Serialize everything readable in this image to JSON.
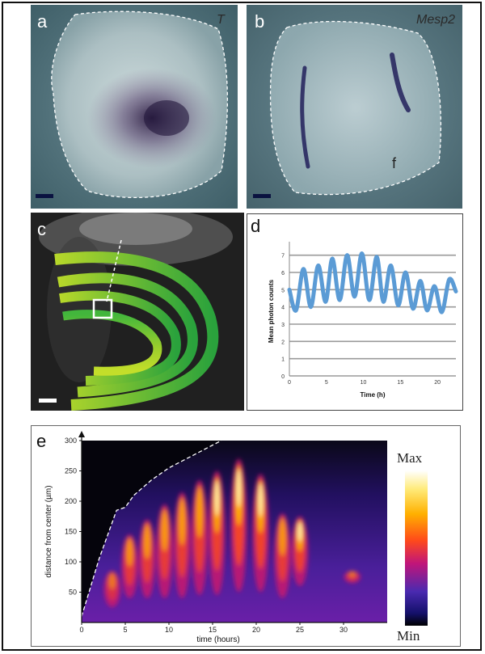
{
  "panels": {
    "a": {
      "label": "a",
      "gene": "T"
    },
    "b": {
      "label": "b",
      "gene": "Mesp2",
      "mark": "f"
    },
    "c": {
      "label": "c"
    },
    "d": {
      "label": "d"
    },
    "e": {
      "label": "e",
      "legend_max": "Max",
      "legend_min": "Min"
    }
  },
  "chart_data": [
    {
      "panel": "d",
      "type": "line",
      "xlabel": "Time (h)",
      "ylabel": "Mean photon counts",
      "xlim": [
        0,
        22.5
      ],
      "ylim": [
        0,
        7.5
      ],
      "xticks": [
        0,
        5,
        10,
        15,
        20
      ],
      "yticks": [
        0,
        1,
        2,
        3,
        4,
        5,
        6,
        7
      ],
      "grid": true,
      "series_color": "#5b9bd5",
      "series": [
        {
          "x": [
            0,
            0.9,
            1.9,
            2.9,
            3.9,
            4.9,
            5.8,
            6.8,
            7.8,
            8.8,
            9.8,
            10.8,
            11.8,
            12.7,
            13.7,
            14.7,
            15.7,
            16.7,
            17.7,
            18.6,
            19.6,
            20.6,
            21.6,
            22.5
          ],
          "y": [
            5.0,
            3.8,
            6.2,
            4.0,
            6.4,
            4.3,
            6.8,
            4.4,
            7.0,
            4.6,
            7.1,
            4.4,
            6.9,
            4.3,
            6.4,
            4.1,
            6.0,
            3.9,
            5.5,
            3.8,
            5.2,
            3.7,
            5.6,
            4.9
          ]
        }
      ]
    },
    {
      "panel": "e",
      "type": "heatmap",
      "xlabel": "time (hours)",
      "ylabel": "distance from center (µm)",
      "xlim": [
        0,
        35
      ],
      "ylim": [
        0,
        300
      ],
      "xticks": [
        0,
        5,
        10,
        15,
        20,
        25,
        30
      ],
      "yticks": [
        50,
        100,
        150,
        200,
        250,
        300
      ],
      "colorbar": [
        "Max",
        "Min"
      ],
      "stripes": [
        {
          "t": 3.5,
          "d0": 25,
          "d1": 85,
          "i": 0.55
        },
        {
          "t": 5.5,
          "d0": 40,
          "d1": 145,
          "i": 0.75
        },
        {
          "t": 7.5,
          "d0": 40,
          "d1": 170,
          "i": 0.78
        },
        {
          "t": 9.5,
          "d0": 40,
          "d1": 195,
          "i": 0.8
        },
        {
          "t": 11.5,
          "d0": 40,
          "d1": 215,
          "i": 0.82
        },
        {
          "t": 13.5,
          "d0": 45,
          "d1": 235,
          "i": 0.85
        },
        {
          "t": 15.5,
          "d0": 45,
          "d1": 250,
          "i": 0.9
        },
        {
          "t": 18.0,
          "d0": 50,
          "d1": 270,
          "i": 1.0
        },
        {
          "t": 20.5,
          "d0": 50,
          "d1": 245,
          "i": 0.95
        },
        {
          "t": 23.0,
          "d0": 40,
          "d1": 180,
          "i": 0.78
        },
        {
          "t": 25.0,
          "d0": 60,
          "d1": 175,
          "i": 0.9
        },
        {
          "t": 31.0,
          "d0": 65,
          "d1": 85,
          "i": 0.55
        }
      ],
      "boundary": {
        "t": [
          0,
          2,
          4,
          5,
          6,
          8,
          10,
          12,
          14,
          16
        ],
        "d": [
          10,
          105,
          185,
          190,
          210,
          235,
          255,
          270,
          285,
          300
        ]
      }
    }
  ]
}
